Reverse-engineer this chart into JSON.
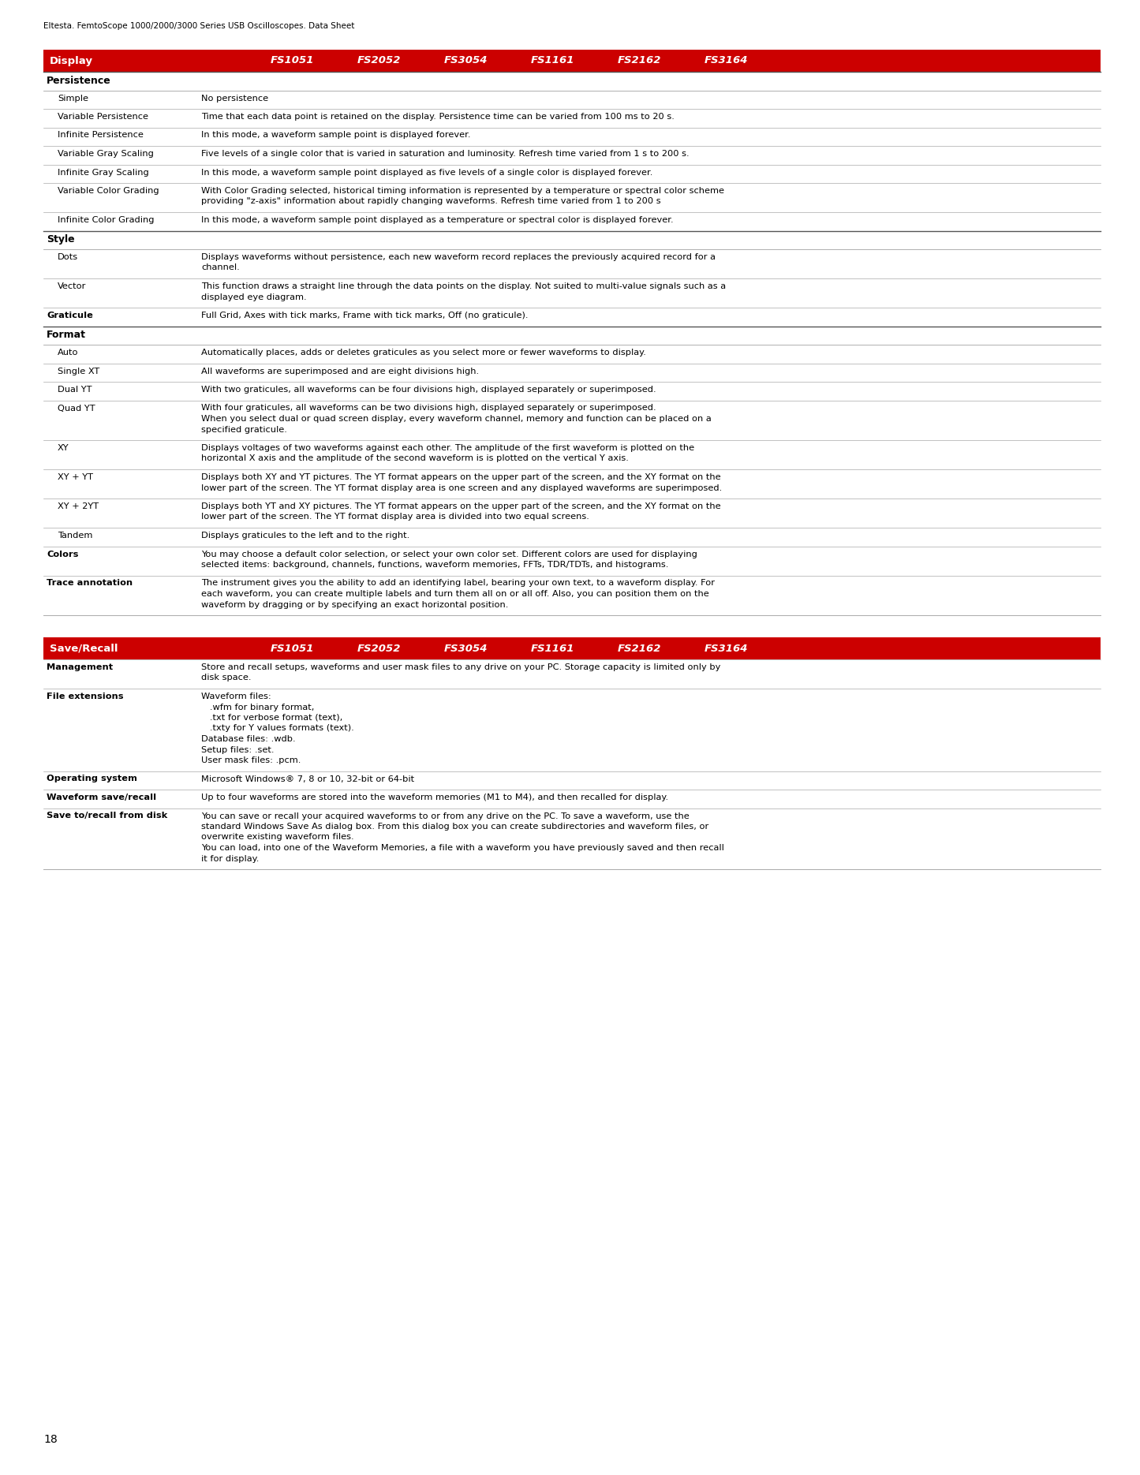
{
  "header_text": "Eltesta. FemtoScope 1000/2000/3000 Series USB Oscilloscopes. Data Sheet",
  "page_number": "18",
  "red_color": "#CC0000",
  "col_headers": [
    "Display",
    "FS1051",
    "FS2052",
    "FS3054",
    "FS1161",
    "FS2162",
    "FS3164"
  ],
  "col2_headers": [
    "Save/Recall",
    "FS1051",
    "FS2052",
    "FS3054",
    "FS1161",
    "FS2162",
    "FS3164"
  ],
  "table1_rows": [
    {
      "type": "section",
      "col1": "Persistence",
      "col2": ""
    },
    {
      "type": "row",
      "col1": "Simple",
      "col2": "No persistence"
    },
    {
      "type": "row",
      "col1": "Variable Persistence",
      "col2": "Time that each data point is retained on the display. Persistence time can be varied from 100 ms to 20 s."
    },
    {
      "type": "row",
      "col1": "Infinite Persistence",
      "col2": "In this mode, a waveform sample point is displayed forever."
    },
    {
      "type": "row",
      "col1": "Variable Gray Scaling",
      "col2": "Five levels of a single color that is varied in saturation and luminosity. Refresh time varied from 1 s to 200 s."
    },
    {
      "type": "row",
      "col1": "Infinite Gray Scaling",
      "col2": "In this mode, a waveform sample point displayed as five levels of a single color is displayed forever."
    },
    {
      "type": "row",
      "col1": "Variable Color Grading",
      "col2": "With Color Grading selected, historical timing information is represented by a temperature or spectral color scheme\nproviding \"z-axis\" information about rapidly changing waveforms. Refresh time varied from 1 to 200 s"
    },
    {
      "type": "row",
      "col1": "Infinite Color Grading",
      "col2": "In this mode, a waveform sample point displayed as a temperature or spectral color is displayed forever."
    },
    {
      "type": "section",
      "col1": "Style",
      "col2": ""
    },
    {
      "type": "row",
      "col1": "Dots",
      "col2": "Displays waveforms without persistence, each new waveform record replaces the previously acquired record for a\nchannel."
    },
    {
      "type": "row",
      "col1": "Vector",
      "col2": "This function draws a straight line through the data points on the display. Not suited to multi-value signals such as a\ndisplayed eye diagram."
    },
    {
      "type": "section_line",
      "col1": "Graticule",
      "col2": "Full Grid, Axes with tick marks, Frame with tick marks, Off (no graticule)."
    },
    {
      "type": "section",
      "col1": "Format",
      "col2": ""
    },
    {
      "type": "row",
      "col1": "Auto",
      "col2": "Automatically places, adds or deletes graticules as you select more or fewer waveforms to display."
    },
    {
      "type": "row",
      "col1": "Single XT",
      "col2": "All waveforms are superimposed and are eight divisions high."
    },
    {
      "type": "row",
      "col1": "Dual YT",
      "col2": "With two graticules, all waveforms can be four divisions high, displayed separately or superimposed."
    },
    {
      "type": "row",
      "col1": "Quad YT",
      "col2": "With four graticules, all waveforms can be two divisions high, displayed separately or superimposed.\nWhen you select dual or quad screen display, every waveform channel, memory and function can be placed on a\nspecified graticule."
    },
    {
      "type": "row",
      "col1": "XY",
      "col2": "Displays voltages of two waveforms against each other. The amplitude of the first waveform is plotted on the\nhorizontal X axis and the amplitude of the second waveform is is plotted on the vertical Y axis."
    },
    {
      "type": "row",
      "col1": "XY + YT",
      "col2": "Displays both XY and YT pictures. The YT format appears on the upper part of the screen, and the XY format on the\nlower part of the screen. The YT format display area is one screen and any displayed waveforms are superimposed."
    },
    {
      "type": "row",
      "col1": "XY + 2YT",
      "col2": "Displays both YT and XY pictures. The YT format appears on the upper part of the screen, and the XY format on the\nlower part of the screen. The YT format display area is divided into two equal screens."
    },
    {
      "type": "row",
      "col1": "Tandem",
      "col2": "Displays graticules to the left and to the right."
    },
    {
      "type": "section_line",
      "col1": "Colors",
      "col2": "You may choose a default color selection, or select your own color set. Different colors are used for displaying\nselected items: background, channels, functions, waveform memories, FFTs, TDR/TDTs, and histograms."
    },
    {
      "type": "section_line",
      "col1": "Trace annotation",
      "col2": "The instrument gives you the ability to add an identifying label, bearing your own text, to a waveform display. For\neach waveform, you can create multiple labels and turn them all on or all off. Also, you can position them on the\nwaveform by dragging or by specifying an exact horizontal position."
    }
  ],
  "table2_rows": [
    {
      "type": "section_line",
      "col1": "Management",
      "col2": "Store and recall setups, waveforms and user mask files to any drive on your PC. Storage capacity is limited only by\ndisk space."
    },
    {
      "type": "section_line",
      "col1": "File extensions",
      "col2": "Waveform files:\n   .wfm for binary format,\n   .txt for verbose format (text),\n   .txty for Y values formats (text).\nDatabase files: .wdb.\nSetup files: .set.\nUser mask files: .pcm."
    },
    {
      "type": "section_line",
      "col1": "Operating system",
      "col2": "Microsoft Windows® 7, 8 or 10, 32-bit or 64-bit"
    },
    {
      "type": "section_line",
      "col1": "Waveform save/recall",
      "col2": "Up to four waveforms are stored into the waveform memories (M1 to M4), and then recalled for display."
    },
    {
      "type": "section_line",
      "col1": "Save to/recall from disk",
      "col2": "You can save or recall your acquired waveforms to or from any drive on the PC. To save a waveform, use the\nstandard Windows Save As dialog box. From this dialog box you can create subdirectories and waveform files, or\noverwrite existing waveform files.\nYou can load, into one of the Waveform Memories, a file with a waveform you have previously saved and then recall\nit for display."
    }
  ]
}
